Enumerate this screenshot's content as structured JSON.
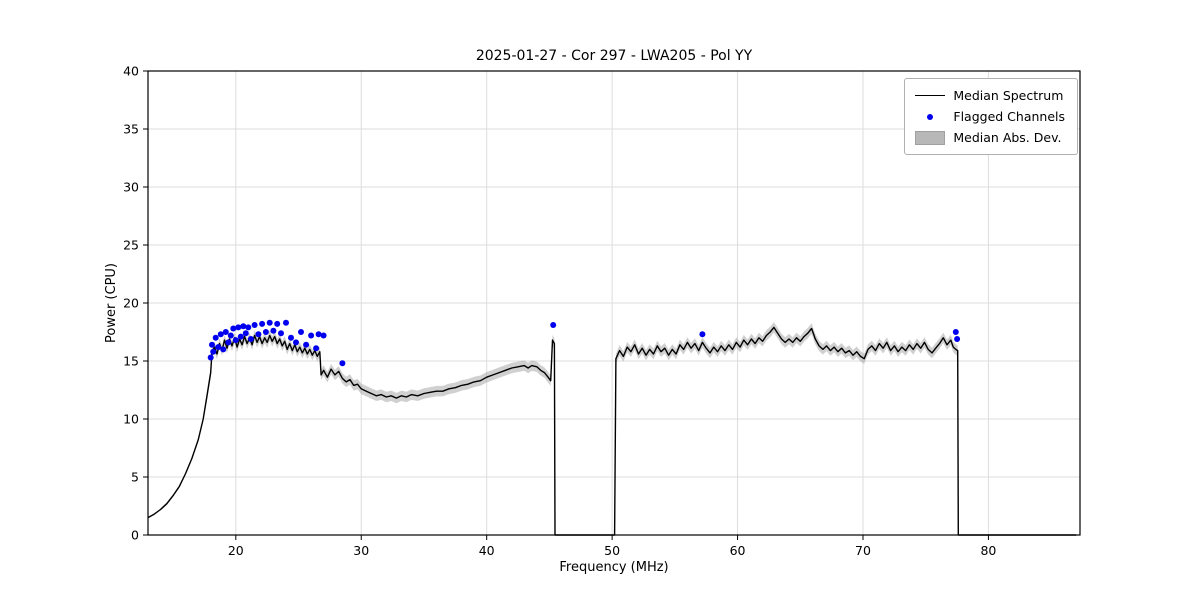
{
  "chart_data": {
    "type": "line",
    "title": "2025-01-27 - Cor 297 - LWA205 - Pol YY",
    "xlabel": "Frequency (MHz)",
    "ylabel": "Power (CPU)",
    "xlim": [
      13.0,
      87.3
    ],
    "ylim": [
      0,
      40
    ],
    "xticks": [
      20,
      30,
      40,
      50,
      60,
      70,
      80
    ],
    "yticks": [
      0,
      5,
      10,
      15,
      20,
      25,
      30,
      35,
      40
    ],
    "grid": true,
    "legend": {
      "position": "upper right",
      "entries": [
        {
          "label": "Median Spectrum",
          "type": "line",
          "color": "#000000"
        },
        {
          "label": "Flagged Channels",
          "type": "dot",
          "color": "#0000ee"
        },
        {
          "label": "Median Abs. Dev.",
          "type": "patch",
          "color": "#b8b8b8"
        }
      ]
    },
    "colors": {
      "spectrum": "#000000",
      "flagged": "#0000ee",
      "mad_band": "#aaaaaa",
      "grid": "#dddddd",
      "spine": "#000000"
    },
    "mad_halfwidth_high": 0.45,
    "mad_halfwidth_low": 0.12,
    "series": [
      {
        "name": "Median Spectrum",
        "points": [
          [
            13.0,
            1.5
          ],
          [
            13.5,
            1.8
          ],
          [
            14.0,
            2.2
          ],
          [
            14.5,
            2.7
          ],
          [
            15.0,
            3.4
          ],
          [
            15.5,
            4.2
          ],
          [
            16.0,
            5.3
          ],
          [
            16.5,
            6.6
          ],
          [
            17.0,
            8.2
          ],
          [
            17.4,
            10.0
          ],
          [
            17.7,
            12.0
          ],
          [
            18.0,
            14.0
          ],
          [
            18.1,
            15.8
          ],
          [
            18.3,
            16.2
          ],
          [
            18.5,
            15.6
          ],
          [
            18.7,
            16.5
          ],
          [
            18.9,
            15.9
          ],
          [
            19.1,
            16.8
          ],
          [
            19.3,
            16.1
          ],
          [
            19.5,
            16.9
          ],
          [
            19.7,
            16.3
          ],
          [
            19.9,
            17.0
          ],
          [
            20.1,
            16.2
          ],
          [
            20.3,
            16.9
          ],
          [
            20.5,
            16.4
          ],
          [
            20.7,
            17.1
          ],
          [
            20.9,
            16.5
          ],
          [
            21.1,
            17.0
          ],
          [
            21.3,
            16.4
          ],
          [
            21.5,
            17.2
          ],
          [
            21.7,
            16.6
          ],
          [
            21.9,
            17.1
          ],
          [
            22.1,
            16.5
          ],
          [
            22.3,
            17.0
          ],
          [
            22.5,
            16.6
          ],
          [
            22.7,
            17.2
          ],
          [
            22.9,
            16.7
          ],
          [
            23.1,
            17.1
          ],
          [
            23.3,
            16.5
          ],
          [
            23.5,
            16.9
          ],
          [
            23.7,
            16.3
          ],
          [
            23.9,
            16.7
          ],
          [
            24.1,
            16.0
          ],
          [
            24.3,
            16.5
          ],
          [
            24.5,
            15.9
          ],
          [
            24.7,
            16.4
          ],
          [
            24.9,
            15.8
          ],
          [
            25.1,
            16.2
          ],
          [
            25.3,
            15.7
          ],
          [
            25.5,
            16.1
          ],
          [
            25.7,
            15.6
          ],
          [
            25.9,
            16.0
          ],
          [
            26.1,
            15.5
          ],
          [
            26.3,
            15.9
          ],
          [
            26.5,
            15.4
          ],
          [
            26.7,
            15.8
          ],
          [
            26.8,
            13.8
          ],
          [
            27.0,
            14.2
          ],
          [
            27.3,
            13.6
          ],
          [
            27.6,
            14.3
          ],
          [
            27.9,
            13.8
          ],
          [
            28.2,
            14.1
          ],
          [
            28.5,
            13.5
          ],
          [
            28.8,
            13.2
          ],
          [
            29.1,
            13.4
          ],
          [
            29.4,
            12.9
          ],
          [
            29.7,
            13.0
          ],
          [
            30.0,
            12.6
          ],
          [
            30.4,
            12.4
          ],
          [
            30.8,
            12.2
          ],
          [
            31.2,
            12.0
          ],
          [
            31.6,
            12.1
          ],
          [
            32.0,
            11.9
          ],
          [
            32.4,
            12.0
          ],
          [
            32.8,
            11.8
          ],
          [
            33.2,
            12.0
          ],
          [
            33.6,
            11.9
          ],
          [
            34.0,
            12.1
          ],
          [
            34.5,
            12.0
          ],
          [
            35.0,
            12.2
          ],
          [
            35.5,
            12.3
          ],
          [
            36.0,
            12.4
          ],
          [
            36.5,
            12.4
          ],
          [
            37.0,
            12.6
          ],
          [
            37.5,
            12.7
          ],
          [
            38.0,
            12.9
          ],
          [
            38.5,
            13.0
          ],
          [
            39.0,
            13.2
          ],
          [
            39.5,
            13.3
          ],
          [
            40.0,
            13.6
          ],
          [
            40.5,
            13.8
          ],
          [
            41.0,
            14.0
          ],
          [
            41.5,
            14.2
          ],
          [
            42.0,
            14.4
          ],
          [
            42.5,
            14.5
          ],
          [
            43.0,
            14.6
          ],
          [
            43.3,
            14.4
          ],
          [
            43.6,
            14.6
          ],
          [
            44.0,
            14.5
          ],
          [
            44.3,
            14.2
          ],
          [
            44.6,
            14.0
          ],
          [
            44.9,
            13.6
          ],
          [
            45.1,
            13.3
          ],
          [
            45.25,
            16.8
          ],
          [
            45.4,
            16.5
          ],
          [
            45.45,
            0
          ],
          [
            50.2,
            0
          ],
          [
            50.3,
            15.2
          ],
          [
            50.6,
            15.9
          ],
          [
            50.9,
            15.4
          ],
          [
            51.2,
            16.2
          ],
          [
            51.5,
            15.8
          ],
          [
            51.8,
            16.4
          ],
          [
            52.1,
            15.6
          ],
          [
            52.4,
            16.1
          ],
          [
            52.7,
            15.5
          ],
          [
            53.0,
            16.0
          ],
          [
            53.3,
            15.6
          ],
          [
            53.6,
            16.3
          ],
          [
            53.9,
            15.8
          ],
          [
            54.2,
            16.1
          ],
          [
            54.5,
            15.5
          ],
          [
            54.8,
            16.0
          ],
          [
            55.1,
            15.6
          ],
          [
            55.4,
            16.4
          ],
          [
            55.7,
            16.0
          ],
          [
            56.0,
            16.6
          ],
          [
            56.3,
            16.1
          ],
          [
            56.6,
            16.5
          ],
          [
            56.9,
            15.9
          ],
          [
            57.2,
            16.6
          ],
          [
            57.5,
            16.1
          ],
          [
            57.8,
            15.7
          ],
          [
            58.1,
            16.2
          ],
          [
            58.4,
            15.8
          ],
          [
            58.7,
            16.3
          ],
          [
            59.0,
            15.9
          ],
          [
            59.3,
            16.4
          ],
          [
            59.6,
            16.0
          ],
          [
            59.9,
            16.6
          ],
          [
            60.2,
            16.2
          ],
          [
            60.5,
            16.8
          ],
          [
            60.8,
            16.4
          ],
          [
            61.1,
            16.9
          ],
          [
            61.4,
            16.5
          ],
          [
            61.7,
            17.0
          ],
          [
            62.0,
            16.7
          ],
          [
            62.3,
            17.2
          ],
          [
            62.6,
            17.5
          ],
          [
            62.9,
            17.9
          ],
          [
            63.2,
            17.4
          ],
          [
            63.5,
            16.9
          ],
          [
            63.8,
            16.6
          ],
          [
            64.1,
            16.9
          ],
          [
            64.4,
            16.6
          ],
          [
            64.7,
            17.0
          ],
          [
            65.0,
            16.7
          ],
          [
            65.3,
            17.1
          ],
          [
            65.6,
            17.4
          ],
          [
            65.9,
            17.8
          ],
          [
            66.2,
            16.9
          ],
          [
            66.5,
            16.3
          ],
          [
            66.8,
            16.0
          ],
          [
            67.1,
            16.3
          ],
          [
            67.4,
            15.9
          ],
          [
            67.7,
            16.2
          ],
          [
            68.0,
            15.8
          ],
          [
            68.3,
            16.1
          ],
          [
            68.6,
            15.7
          ],
          [
            68.9,
            15.9
          ],
          [
            69.2,
            15.5
          ],
          [
            69.5,
            15.8
          ],
          [
            69.8,
            15.4
          ],
          [
            70.1,
            15.2
          ],
          [
            70.4,
            16.0
          ],
          [
            70.7,
            16.3
          ],
          [
            71.0,
            15.9
          ],
          [
            71.3,
            16.5
          ],
          [
            71.6,
            16.1
          ],
          [
            71.9,
            16.6
          ],
          [
            72.2,
            15.9
          ],
          [
            72.5,
            16.3
          ],
          [
            72.8,
            15.8
          ],
          [
            73.1,
            16.2
          ],
          [
            73.4,
            15.9
          ],
          [
            73.7,
            16.4
          ],
          [
            74.0,
            16.0
          ],
          [
            74.3,
            16.5
          ],
          [
            74.6,
            16.1
          ],
          [
            74.9,
            16.6
          ],
          [
            75.2,
            16.0
          ],
          [
            75.5,
            15.7
          ],
          [
            75.8,
            16.1
          ],
          [
            76.1,
            16.5
          ],
          [
            76.4,
            17.0
          ],
          [
            76.7,
            16.4
          ],
          [
            77.0,
            16.8
          ],
          [
            77.2,
            16.2
          ],
          [
            77.4,
            16.0
          ],
          [
            77.55,
            15.9
          ],
          [
            77.6,
            0
          ],
          [
            87.0,
            0
          ]
        ]
      }
    ],
    "flagged_channels": [
      [
        18.0,
        15.3
      ],
      [
        18.1,
        16.4
      ],
      [
        18.2,
        15.8
      ],
      [
        18.4,
        17.0
      ],
      [
        18.6,
        16.2
      ],
      [
        18.8,
        17.3
      ],
      [
        19.0,
        16.0
      ],
      [
        19.2,
        17.5
      ],
      [
        19.4,
        16.6
      ],
      [
        19.6,
        17.2
      ],
      [
        19.8,
        17.8
      ],
      [
        20.0,
        16.8
      ],
      [
        20.2,
        17.9
      ],
      [
        20.4,
        17.1
      ],
      [
        20.6,
        18.0
      ],
      [
        20.8,
        17.4
      ],
      [
        21.0,
        17.9
      ],
      [
        21.2,
        16.9
      ],
      [
        21.5,
        18.1
      ],
      [
        21.8,
        17.3
      ],
      [
        22.1,
        18.2
      ],
      [
        22.4,
        17.5
      ],
      [
        22.7,
        18.3
      ],
      [
        23.0,
        17.6
      ],
      [
        23.3,
        18.2
      ],
      [
        23.6,
        17.4
      ],
      [
        24.0,
        18.3
      ],
      [
        24.4,
        17.0
      ],
      [
        24.8,
        16.6
      ],
      [
        25.2,
        17.5
      ],
      [
        25.6,
        16.4
      ],
      [
        26.0,
        17.2
      ],
      [
        26.4,
        16.1
      ],
      [
        26.6,
        17.3
      ],
      [
        27.0,
        17.2
      ],
      [
        28.5,
        14.8
      ],
      [
        45.3,
        18.1
      ],
      [
        57.2,
        17.3
      ],
      [
        77.4,
        17.5
      ],
      [
        77.5,
        16.9
      ]
    ]
  }
}
